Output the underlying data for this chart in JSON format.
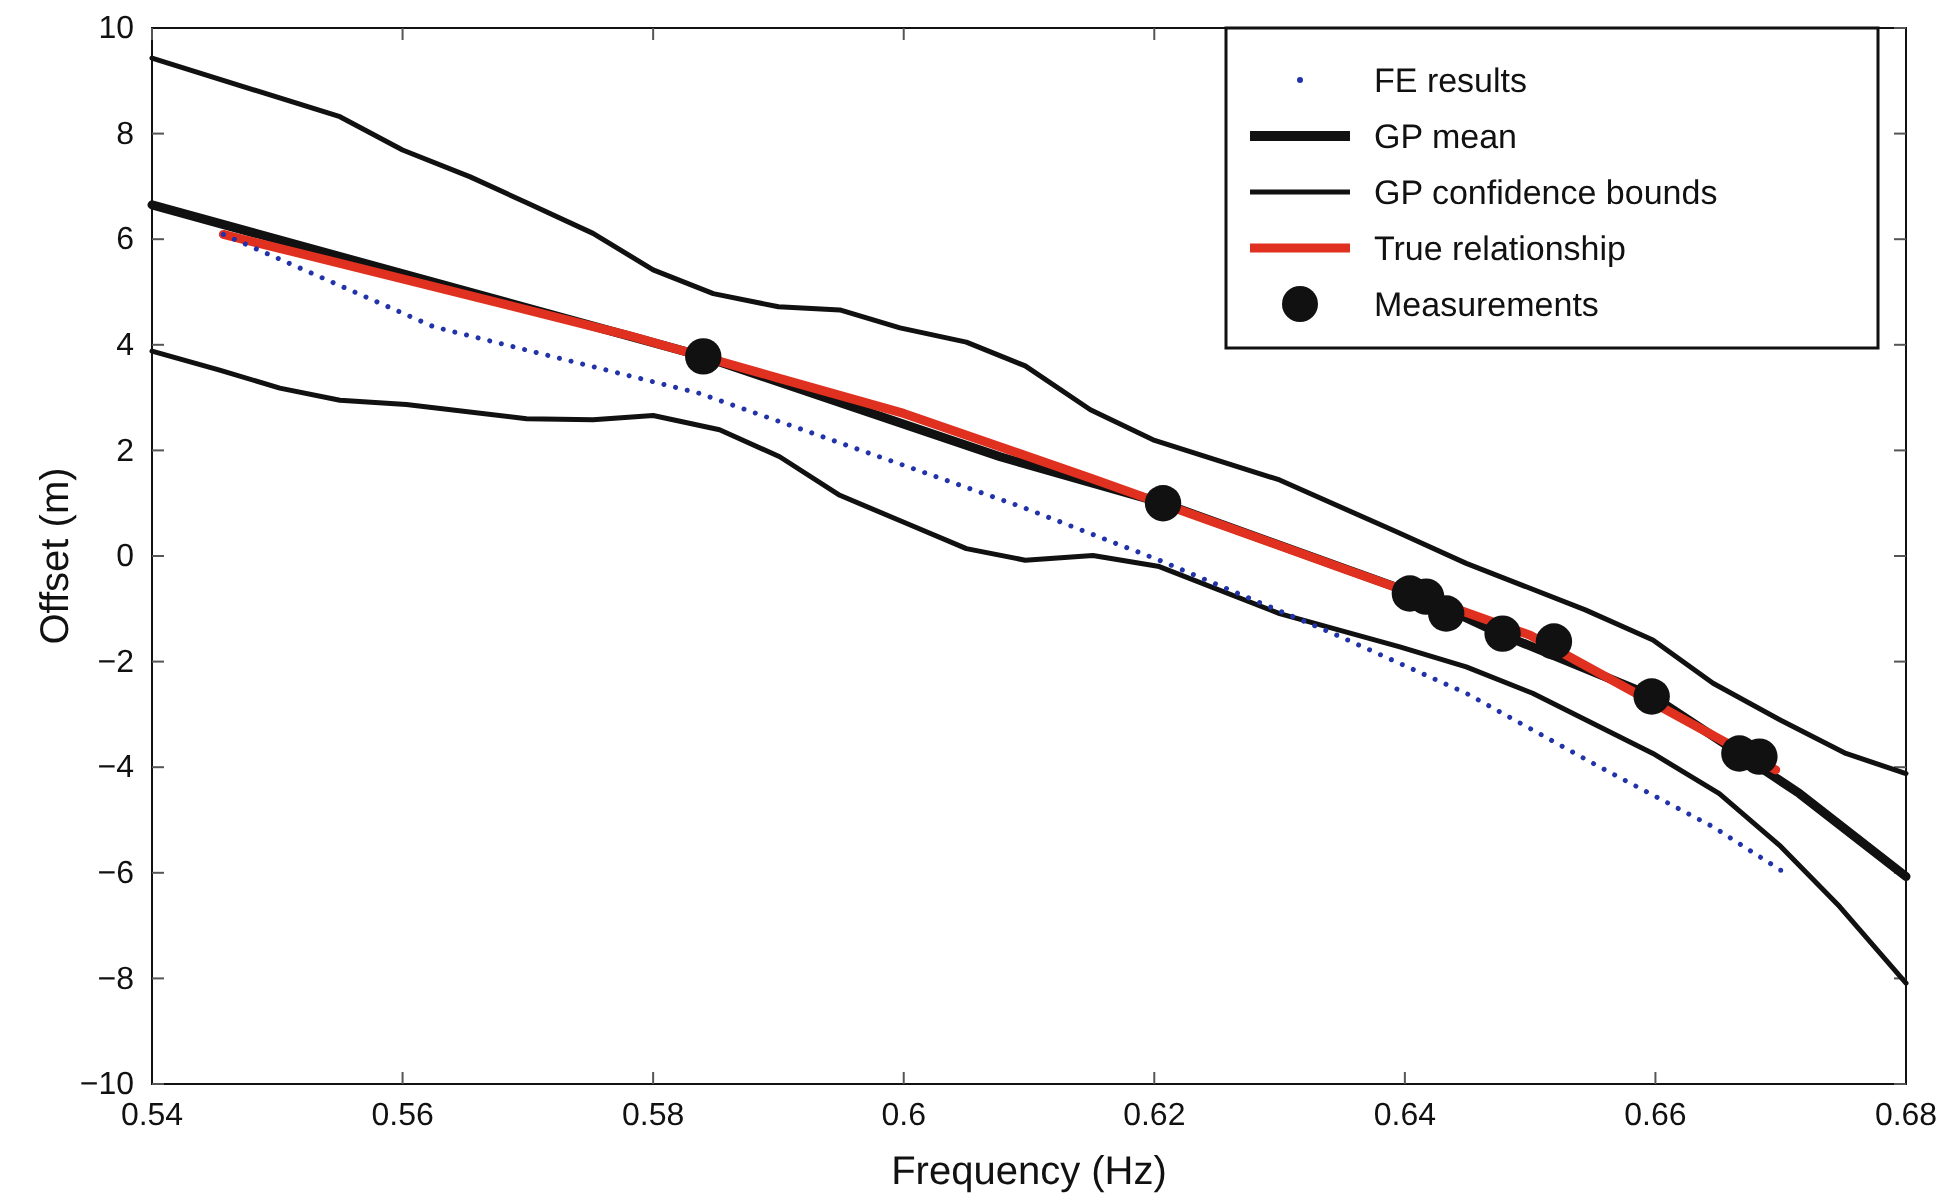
{
  "chart_data": {
    "type": "line",
    "xlabel": "Frequency (Hz)",
    "ylabel": "Offset (m)",
    "xlim": [
      0.54,
      0.68
    ],
    "ylim": [
      -10,
      10
    ],
    "xticks": [
      0.54,
      0.56,
      0.58,
      0.6,
      0.62,
      0.64,
      0.66,
      0.68
    ],
    "yticks": [
      -10,
      -8,
      -6,
      -4,
      -2,
      0,
      2,
      4,
      6,
      8,
      10
    ],
    "grid": false,
    "legend": "top right",
    "series": [
      {
        "name": "FE results",
        "color": "#2233aa",
        "line_style": "dotted",
        "x": [
          0.5457,
          0.5625,
          0.5837,
          0.6093,
          0.6204,
          0.6343,
          0.6449,
          0.6555,
          0.6646,
          0.67
        ],
        "values": [
          6.09,
          4.34,
          3.08,
          0.94,
          -0.08,
          -1.47,
          -2.6,
          -3.99,
          -5.13,
          -5.95
        ]
      },
      {
        "name": "GP mean",
        "color": "#111111",
        "x": [
          0.54,
          0.584,
          0.6077,
          0.6207,
          0.6407,
          0.6476,
          0.6598,
          0.6667,
          0.6715,
          0.68
        ],
        "values": [
          6.65,
          3.78,
          1.88,
          1.0,
          -0.71,
          -1.47,
          -2.66,
          -3.74,
          -4.5,
          -6.07
        ]
      },
      {
        "name": "GP confidence bounds",
        "color": "#111111",
        "x": [
          0.54,
          0.555,
          0.56,
          0.5654,
          0.57,
          0.5752,
          0.58,
          0.5848,
          0.59,
          0.5949,
          0.5997,
          0.605,
          0.6097,
          0.6149,
          0.6199,
          0.63,
          0.6396,
          0.6449,
          0.6544,
          0.6598,
          0.6646,
          0.67,
          0.6752,
          0.68
        ],
        "values": [
          9.43,
          8.32,
          7.69,
          7.18,
          6.68,
          6.11,
          5.42,
          4.97,
          4.72,
          4.66,
          4.32,
          4.05,
          3.6,
          2.77,
          2.2,
          1.44,
          0.43,
          -0.14,
          -1.02,
          -1.59,
          -2.41,
          -3.11,
          -3.74,
          -4.12
        ]
      },
      {
        "color": "#111111",
        "x": [
          0.54,
          0.5454,
          0.5502,
          0.555,
          0.5603,
          0.5699,
          0.5752,
          0.58,
          0.5853,
          0.5901,
          0.5949,
          0.6002,
          0.605,
          0.6097,
          0.6151,
          0.6204,
          0.63,
          0.6396,
          0.6449,
          0.6502,
          0.6598,
          0.6651,
          0.67,
          0.6747,
          0.68
        ],
        "values": [
          3.88,
          3.52,
          3.18,
          2.95,
          2.87,
          2.6,
          2.58,
          2.66,
          2.39,
          1.88,
          1.15,
          0.62,
          0.14,
          -0.08,
          0.01,
          -0.2,
          -1.09,
          -1.72,
          -2.1,
          -2.6,
          -3.74,
          -4.5,
          -5.5,
          -6.64,
          -8.09
        ]
      },
      {
        "name": "True relationship",
        "color": "#e03020",
        "x": [
          0.5457,
          0.56,
          0.578,
          0.59,
          0.6,
          0.615,
          0.635,
          0.65,
          0.6696
        ],
        "values": [
          6.09,
          5.25,
          4.18,
          3.37,
          2.7,
          1.47,
          -0.23,
          -1.5,
          -4.05
        ]
      },
      {
        "name": "Measurements",
        "type": "scatter",
        "marker": "circle",
        "color": "#111111",
        "x": [
          0.584,
          0.6207,
          0.6404,
          0.6417,
          0.6433,
          0.6478,
          0.6519,
          0.6597,
          0.6667,
          0.6683
        ],
        "values": [
          3.78,
          1.0,
          -0.71,
          -0.77,
          -1.09,
          -1.47,
          -1.62,
          -2.66,
          -3.74,
          -3.8
        ]
      }
    ]
  }
}
